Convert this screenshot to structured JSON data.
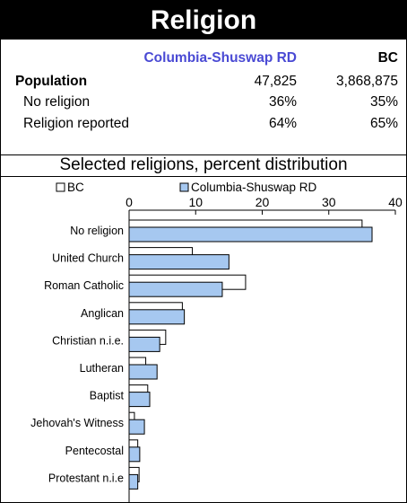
{
  "header": {
    "title": "Religion"
  },
  "summary": {
    "region_label": "Columbia-Shuswap RD",
    "bc_label": "BC",
    "rows": [
      {
        "label": "Population",
        "region": "47,825",
        "bc": "3,868,875"
      },
      {
        "label": "No religion",
        "region": "36%",
        "bc": "35%"
      },
      {
        "label": "Religion reported",
        "region": "64%",
        "bc": "65%"
      }
    ]
  },
  "chart_data": {
    "type": "bar",
    "orientation": "horizontal",
    "title": "Selected religions, percent distribution",
    "xlim": [
      0,
      40
    ],
    "xticks": [
      0,
      10,
      20,
      30,
      40
    ],
    "legend_position": "top",
    "categories": [
      "No religion",
      "United Church",
      "Roman Catholic",
      "Anglican",
      "Christian n.i.e.",
      "Lutheran",
      "Baptist",
      "Jehovah's Witness",
      "Pentecostal",
      "Protestant n.i.e"
    ],
    "series": [
      {
        "name": "BC",
        "color": "#ffffff",
        "values": [
          35,
          9.5,
          17.5,
          8,
          5.5,
          2.5,
          2.8,
          0.8,
          1.3,
          1.5
        ]
      },
      {
        "name": "Columbia-Shuswap RD",
        "color": "#a6c8f0",
        "values": [
          36.5,
          15,
          14,
          8.3,
          4.6,
          4.2,
          3.1,
          2.3,
          1.6,
          1.3
        ]
      }
    ]
  }
}
